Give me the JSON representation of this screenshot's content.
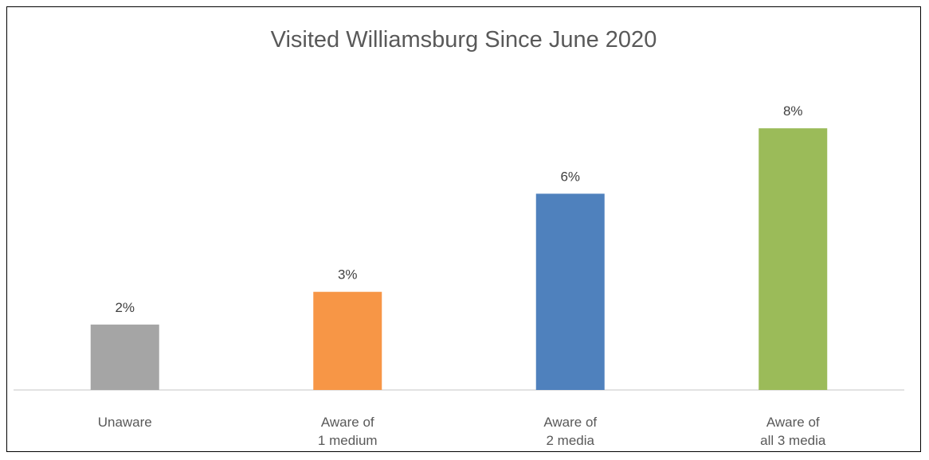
{
  "chart_data": {
    "type": "bar",
    "title": "Visited Williamsburg Since June 2020",
    "categories": [
      [
        "Unaware"
      ],
      [
        "Aware of",
        "1 medium"
      ],
      [
        "Aware of",
        "2 media"
      ],
      [
        "Aware of",
        "all 3 media"
      ]
    ],
    "values": [
      2,
      3,
      6,
      8
    ],
    "data_labels": [
      "2%",
      "3%",
      "6%",
      "8%"
    ],
    "colors": [
      "#a5a5a5",
      "#f79646",
      "#4f81bd",
      "#9bbb59"
    ],
    "ylim": [
      0,
      10
    ],
    "axis_color": "#d9d9d9",
    "grid": false,
    "legend": "none"
  }
}
